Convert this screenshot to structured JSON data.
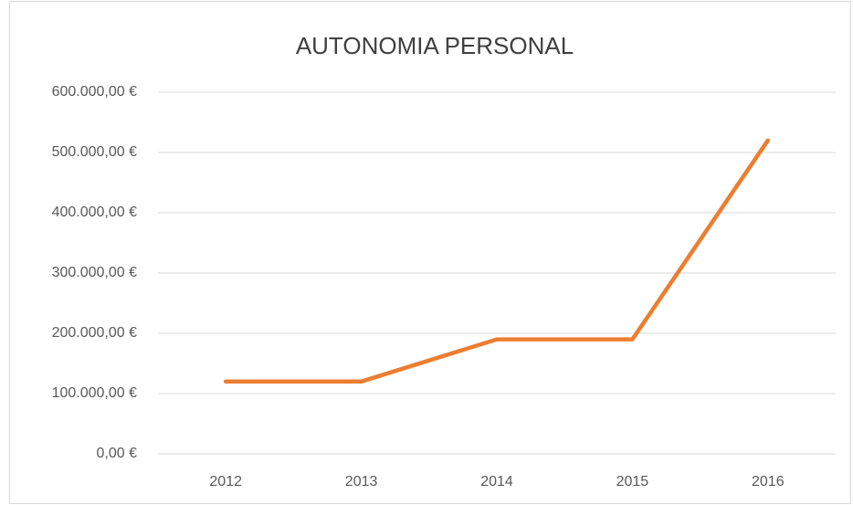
{
  "chart_data": {
    "type": "line",
    "title": "AUTONOMIA PERSONAL",
    "categories": [
      "2012",
      "2013",
      "2014",
      "2015",
      "2016"
    ],
    "series": [
      {
        "name": "AUTONOMIA PERSONAL",
        "color": "#ed7d31",
        "values": [
          120000,
          120000,
          190000,
          190000,
          520000
        ]
      }
    ],
    "ylim": [
      0,
      600000
    ],
    "yticks": [
      {
        "value": 0,
        "label": "0,00 €"
      },
      {
        "value": 100000,
        "label": "100.000,00 €"
      },
      {
        "value": 200000,
        "label": "200.000,00 €"
      },
      {
        "value": 300000,
        "label": "300.000,00 €"
      },
      {
        "value": 400000,
        "label": "400.000,00 €"
      },
      {
        "value": 500000,
        "label": "500.000,00 €"
      },
      {
        "value": 600000,
        "label": "600.000,00 €"
      }
    ],
    "grid": true
  }
}
